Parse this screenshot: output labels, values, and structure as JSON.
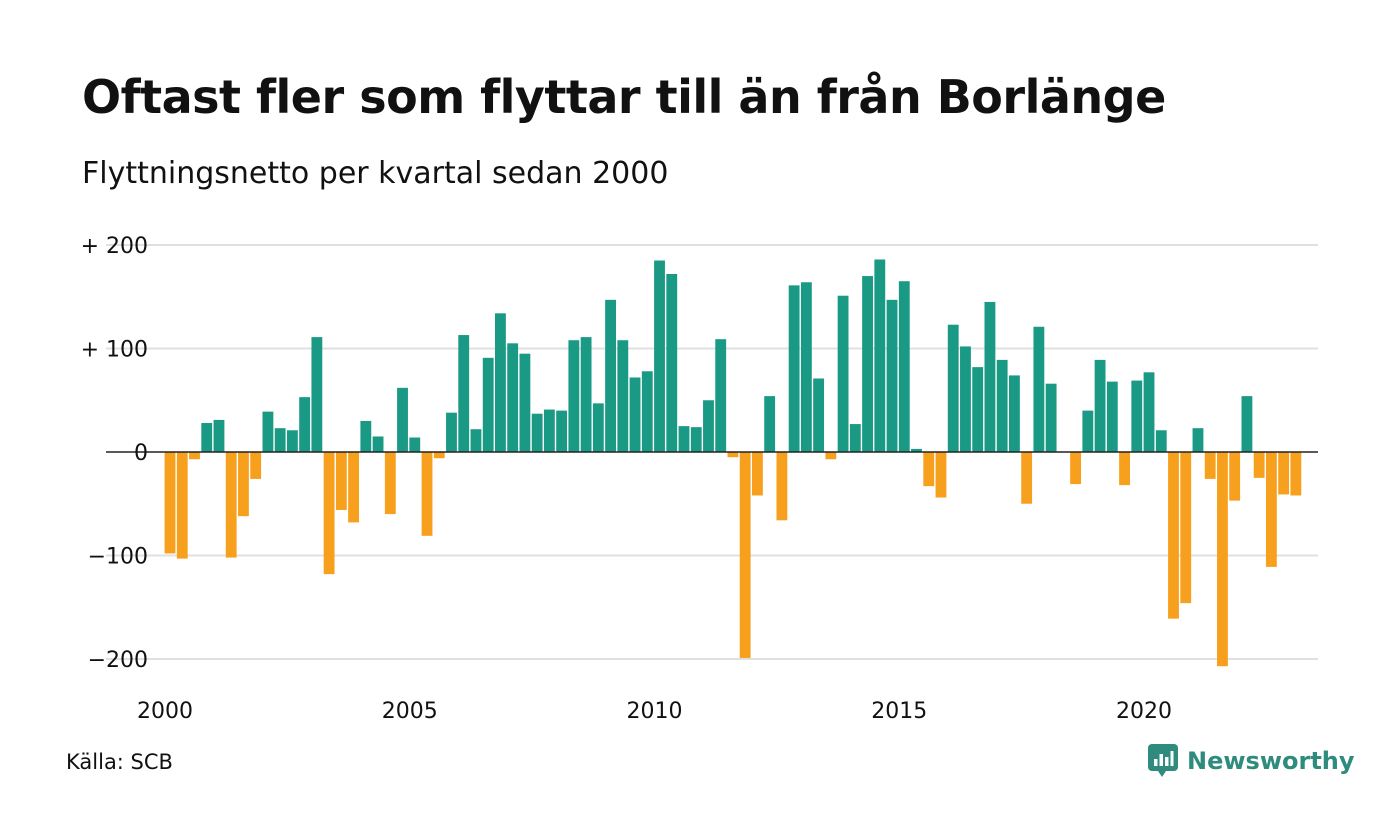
{
  "title": "Oftast fler som flyttar till än från Borlänge",
  "subtitle": "Flyttningsnetto per kvartal sedan 2000",
  "source": "Källa: SCB",
  "brand": {
    "name": "Newsworthy",
    "icon": "newsworthy-logo-icon"
  },
  "colors": {
    "positive": "#1a9985",
    "negative": "#f7a01d",
    "grid": "#e0e0e0",
    "zero_line": "#222222"
  },
  "chart_data": {
    "type": "bar",
    "title": "Oftast fler som flyttar till än från Borlänge",
    "subtitle": "Flyttningsnetto per kvartal sedan 2000",
    "xlabel": "",
    "ylabel": "",
    "ylim": [
      -220,
      210
    ],
    "xlim": [
      2000,
      2023.5
    ],
    "y_ticks": [
      {
        "value": 200,
        "label": "+ 200"
      },
      {
        "value": 100,
        "label": "+ 100"
      },
      {
        "value": 0,
        "label": "0"
      },
      {
        "value": -100,
        "label": "−100"
      },
      {
        "value": -200,
        "label": "−200"
      }
    ],
    "x_ticks": [
      {
        "value": 2000,
        "label": "2000"
      },
      {
        "value": 2005,
        "label": "2005"
      },
      {
        "value": 2010,
        "label": "2010"
      },
      {
        "value": 2015,
        "label": "2015"
      },
      {
        "value": 2020,
        "label": "2020"
      }
    ],
    "grid": true,
    "legend": "none",
    "first_quarter": "2000 Q1",
    "values": [
      -98,
      -103,
      -7,
      28,
      31,
      -102,
      -62,
      -26,
      39,
      23,
      21,
      53,
      111,
      -118,
      -56,
      -68,
      30,
      15,
      -60,
      62,
      14,
      -81,
      -6,
      38,
      113,
      22,
      91,
      134,
      105,
      95,
      37,
      41,
      40,
      108,
      111,
      47,
      147,
      108,
      72,
      78,
      185,
      172,
      25,
      24,
      50,
      109,
      -5,
      -199,
      -42,
      54,
      -66,
      161,
      164,
      71,
      -7,
      151,
      27,
      170,
      186,
      147,
      165,
      3,
      -33,
      -44,
      123,
      102,
      82,
      145,
      89,
      74,
      -50,
      121,
      66,
      0,
      -31,
      40,
      89,
      68,
      -32,
      69,
      77,
      21,
      -161,
      -146,
      23,
      -26,
      -207,
      -47,
      54,
      -25,
      -111,
      -41,
      -42
    ]
  }
}
